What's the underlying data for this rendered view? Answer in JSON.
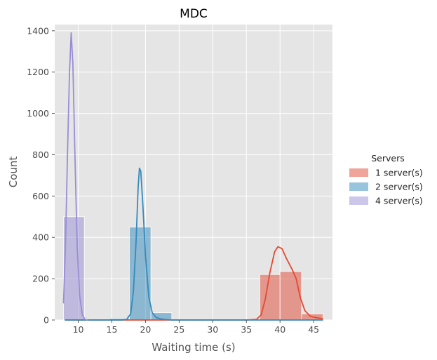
{
  "chart_data": {
    "type": "histogram",
    "title": "MDC",
    "xlabel": "Waiting time (s)",
    "ylabel": "Count",
    "xlim": [
      6.5,
      47.8
    ],
    "ylim": [
      0,
      1430
    ],
    "xticks": [
      10,
      15,
      20,
      25,
      30,
      35,
      40,
      45
    ],
    "yticks": [
      0,
      200,
      400,
      600,
      800,
      1000,
      1200,
      1400
    ],
    "grid": true,
    "legend": {
      "title": "Servers",
      "placement": "right"
    },
    "series": [
      {
        "name": "1 server(s)",
        "color": "#E24A33",
        "bins": [
          {
            "x0": 37.0,
            "x1": 40.0,
            "count": 220
          },
          {
            "x0": 40.0,
            "x1": 43.2,
            "count": 235
          },
          {
            "x0": 43.2,
            "x1": 46.4,
            "count": 30
          }
        ],
        "kde": [
          [
            8,
            0
          ],
          [
            30,
            0
          ],
          [
            35,
            0
          ],
          [
            36.5,
            3
          ],
          [
            37.2,
            25
          ],
          [
            37.8,
            100
          ],
          [
            38.5,
            230
          ],
          [
            39.2,
            330
          ],
          [
            39.7,
            355
          ],
          [
            40.3,
            345
          ],
          [
            41,
            295
          ],
          [
            41.8,
            245
          ],
          [
            42.4,
            200
          ],
          [
            43,
            110
          ],
          [
            43.7,
            45
          ],
          [
            44.5,
            18
          ],
          [
            45.3,
            12
          ],
          [
            46,
            8
          ],
          [
            46.4,
            5
          ]
        ]
      },
      {
        "name": "2 server(s)",
        "color": "#348ABD",
        "bins": [
          {
            "x0": 14.6,
            "x1": 17.6,
            "count": 8
          },
          {
            "x0": 17.6,
            "x1": 20.8,
            "count": 450
          },
          {
            "x0": 20.8,
            "x1": 23.9,
            "count": 35
          }
        ],
        "kde": [
          [
            8,
            0
          ],
          [
            16.5,
            0
          ],
          [
            17.2,
            3
          ],
          [
            17.8,
            30
          ],
          [
            18.2,
            140
          ],
          [
            18.6,
            380
          ],
          [
            18.9,
            640
          ],
          [
            19.1,
            735
          ],
          [
            19.3,
            720
          ],
          [
            19.6,
            560
          ],
          [
            20,
            310
          ],
          [
            20.5,
            110
          ],
          [
            21,
            35
          ],
          [
            21.6,
            12
          ],
          [
            22.3,
            5
          ],
          [
            23,
            2
          ],
          [
            24,
            0
          ],
          [
            46.4,
            0
          ]
        ]
      },
      {
        "name": "4 server(s)",
        "color": "#988ED5",
        "bins": [
          {
            "x0": 7.8,
            "x1": 10.9,
            "count": 500
          }
        ],
        "kde": [
          [
            7.8,
            80
          ],
          [
            8.1,
            350
          ],
          [
            8.4,
            800
          ],
          [
            8.7,
            1200
          ],
          [
            8.95,
            1390
          ],
          [
            9.2,
            1240
          ],
          [
            9.5,
            800
          ],
          [
            9.85,
            350
          ],
          [
            10.2,
            120
          ],
          [
            10.6,
            25
          ],
          [
            11,
            3
          ],
          [
            11.5,
            0
          ]
        ]
      }
    ]
  }
}
